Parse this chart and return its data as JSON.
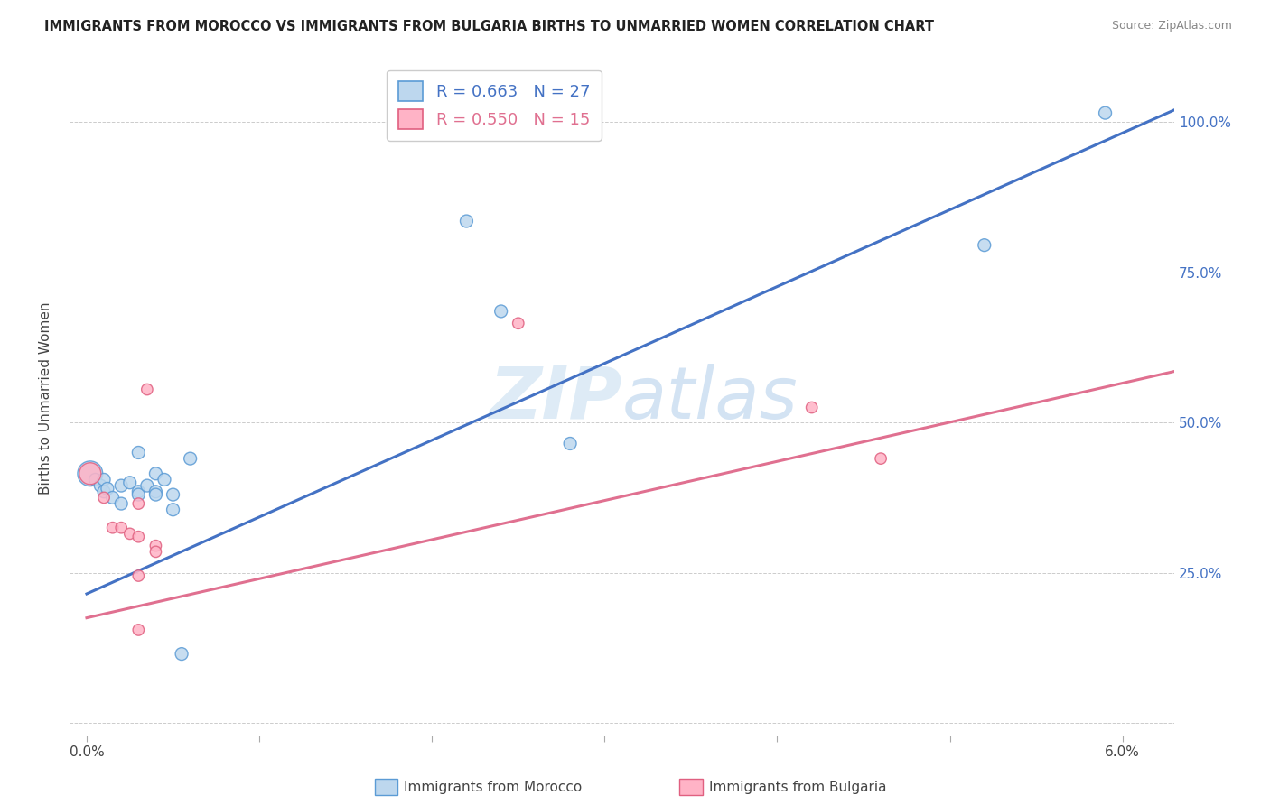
{
  "title": "IMMIGRANTS FROM MOROCCO VS IMMIGRANTS FROM BULGARIA BIRTHS TO UNMARRIED WOMEN CORRELATION CHART",
  "source": "Source: ZipAtlas.com",
  "ylabel": "Births to Unmarried Women",
  "ytick_vals": [
    0.0,
    0.25,
    0.5,
    0.75,
    1.0
  ],
  "ytick_labels": [
    "",
    "25.0%",
    "50.0%",
    "75.0%",
    "100.0%"
  ],
  "xlim": [
    -0.001,
    0.063
  ],
  "ylim": [
    -0.02,
    1.1
  ],
  "legend_blue_r": "R = 0.663",
  "legend_blue_n": "N = 27",
  "legend_pink_r": "R = 0.550",
  "legend_pink_n": "N = 15",
  "blue_fill": "#BDD7EE",
  "blue_edge": "#5B9BD5",
  "pink_fill": "#FFB3C6",
  "pink_edge": "#E06080",
  "blue_line_color": "#4472C4",
  "pink_line_color": "#E07090",
  "watermark_color": "#D6EAF8",
  "morocco_points": [
    [
      0.0002,
      0.415
    ],
    [
      0.0005,
      0.405
    ],
    [
      0.0008,
      0.395
    ],
    [
      0.001,
      0.405
    ],
    [
      0.001,
      0.385
    ],
    [
      0.0012,
      0.39
    ],
    [
      0.0015,
      0.375
    ],
    [
      0.002,
      0.365
    ],
    [
      0.002,
      0.395
    ],
    [
      0.0025,
      0.4
    ],
    [
      0.003,
      0.385
    ],
    [
      0.003,
      0.38
    ],
    [
      0.003,
      0.45
    ],
    [
      0.0035,
      0.395
    ],
    [
      0.004,
      0.385
    ],
    [
      0.004,
      0.415
    ],
    [
      0.004,
      0.38
    ],
    [
      0.0045,
      0.405
    ],
    [
      0.005,
      0.355
    ],
    [
      0.005,
      0.38
    ],
    [
      0.006,
      0.44
    ],
    [
      0.0055,
      0.115
    ],
    [
      0.022,
      0.835
    ],
    [
      0.024,
      0.685
    ],
    [
      0.028,
      0.465
    ],
    [
      0.052,
      0.795
    ],
    [
      0.059,
      1.015
    ]
  ],
  "morocco_sizes": [
    400,
    100,
    100,
    100,
    100,
    100,
    100,
    100,
    100,
    100,
    100,
    100,
    100,
    100,
    100,
    100,
    100,
    100,
    100,
    100,
    100,
    100,
    100,
    100,
    100,
    100,
    100
  ],
  "bulgaria_points": [
    [
      0.0002,
      0.415
    ],
    [
      0.001,
      0.375
    ],
    [
      0.0015,
      0.325
    ],
    [
      0.002,
      0.325
    ],
    [
      0.0025,
      0.315
    ],
    [
      0.003,
      0.365
    ],
    [
      0.003,
      0.31
    ],
    [
      0.003,
      0.245
    ],
    [
      0.003,
      0.155
    ],
    [
      0.0035,
      0.555
    ],
    [
      0.004,
      0.295
    ],
    [
      0.004,
      0.285
    ],
    [
      0.025,
      0.665
    ],
    [
      0.042,
      0.525
    ],
    [
      0.046,
      0.44
    ]
  ],
  "bulgaria_sizes": [
    300,
    80,
    80,
    80,
    80,
    80,
    80,
    80,
    80,
    80,
    80,
    80,
    80,
    80,
    80
  ],
  "blue_line_x": [
    0.0,
    0.063
  ],
  "blue_line_y": [
    0.215,
    1.02
  ],
  "pink_line_x": [
    0.0,
    0.063
  ],
  "pink_line_y": [
    0.175,
    0.585
  ]
}
